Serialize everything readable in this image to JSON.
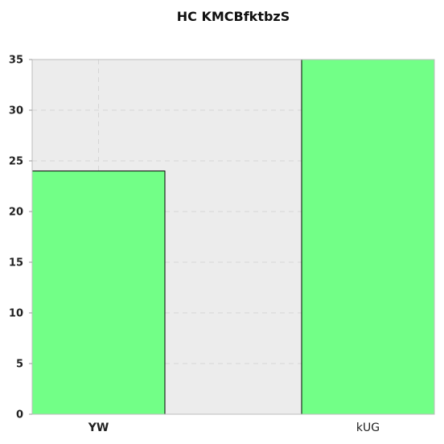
{
  "chart_data": {
    "type": "bar",
    "title": "HC KMCBfktbzS",
    "xlabel": "",
    "ylabel": "",
    "categories": [
      "YW",
      "kUG"
    ],
    "values": [
      24,
      35
    ],
    "ylim": [
      0,
      35
    ],
    "yticks": [
      0,
      5,
      10,
      15,
      20,
      25,
      30,
      35
    ],
    "grid": true,
    "bar_color": "#72ff87",
    "bar_edge_color": "#000000",
    "plot_background": "#ececec",
    "grid_color": "#d6d6d6"
  }
}
